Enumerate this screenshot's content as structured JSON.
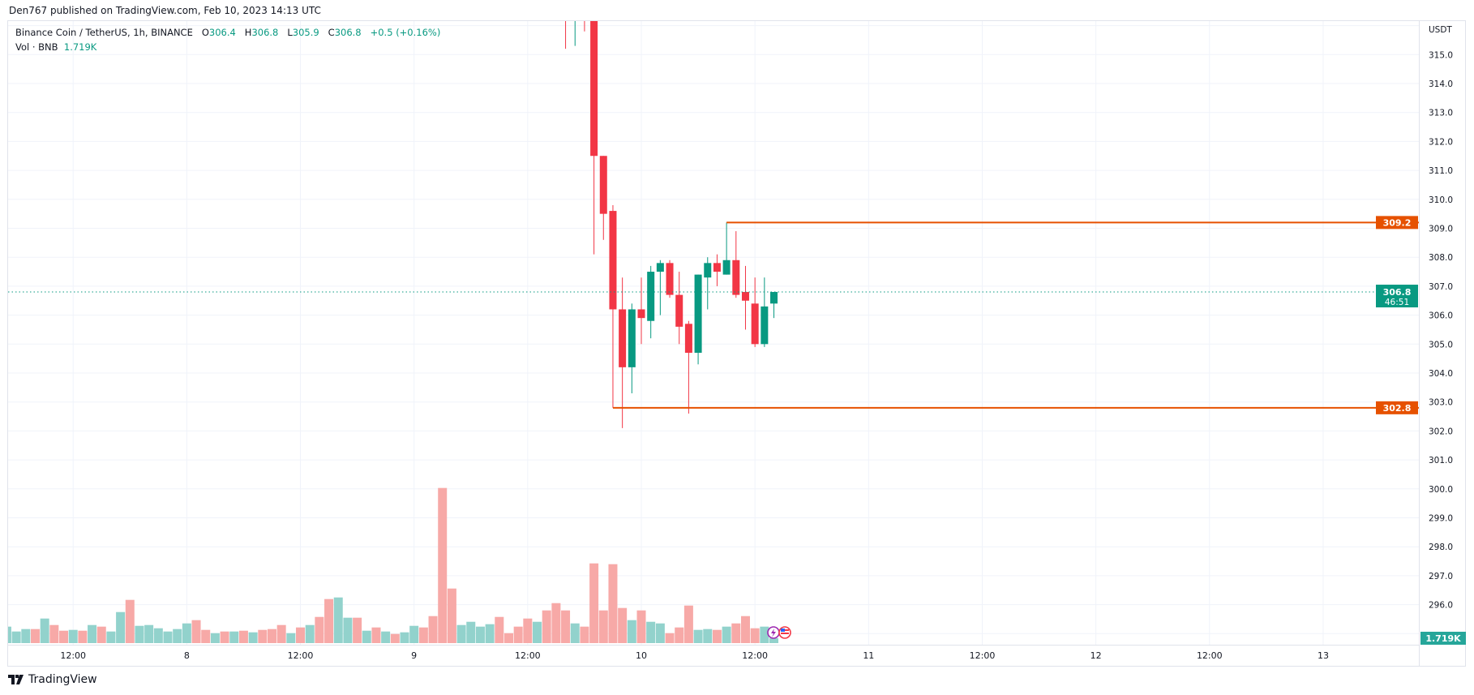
{
  "header": {
    "published": "Den767 published on TradingView.com, Feb 10, 2023 14:13 UTC"
  },
  "legend": {
    "symbol": "Binance Coin / TetherUS, 1h, BINANCE",
    "o_label": "O",
    "open": "306.4",
    "h_label": "H",
    "high": "306.8",
    "l_label": "L",
    "low": "305.9",
    "c_label": "C",
    "close": "306.8",
    "change": "+0.5 (+0.16%)",
    "vol_label": "Vol · BNB",
    "vol_value": "1.719K"
  },
  "footer": {
    "brand": "TradingView"
  },
  "colors": {
    "up": "#089981",
    "down": "#F23645",
    "up_vol": "#92D2CC",
    "down_vol": "#F7A9A7",
    "level_line": "#E65100",
    "grid": "#F0F3FA"
  },
  "chart_data": {
    "type": "candlestick",
    "currency_label": "USDT",
    "grid": true,
    "ylim": [
      294.3,
      316.5
    ],
    "y_ticks": [
      "315.0",
      "314.0",
      "313.0",
      "312.0",
      "311.0",
      "310.0",
      "309.0",
      "308.0",
      "307.0",
      "306.0",
      "305.0",
      "304.0",
      "303.0",
      "302.0",
      "301.0",
      "300.0",
      "299.0",
      "298.0",
      "297.0",
      "296.0"
    ],
    "x_ticks": [
      {
        "label": "12:00",
        "t": "2023-02-07 12:00"
      },
      {
        "label": "8",
        "t": "2023-02-08 00:00"
      },
      {
        "label": "12:00",
        "t": "2023-02-08 12:00"
      },
      {
        "label": "9",
        "t": "2023-02-09 00:00"
      },
      {
        "label": "12:00",
        "t": "2023-02-09 12:00"
      },
      {
        "label": "10",
        "t": "2023-02-10 00:00"
      },
      {
        "label": "12:00",
        "t": "2023-02-10 12:00"
      },
      {
        "label": "11",
        "t": "2023-02-11 00:00"
      },
      {
        "label": "12:00",
        "t": "2023-02-11 12:00"
      },
      {
        "label": "12",
        "t": "2023-02-12 00:00"
      },
      {
        "label": "12:00",
        "t": "2023-02-12 12:00"
      },
      {
        "label": "13",
        "t": "2023-02-13 00:00"
      }
    ],
    "candles": [
      {
        "t": "2023-02-09 16:00",
        "o": null,
        "h": null,
        "l": 315.2,
        "c": null,
        "dir": "down"
      },
      {
        "t": "2023-02-09 17:00",
        "o": null,
        "h": null,
        "l": 315.3,
        "c": null,
        "dir": "up"
      },
      {
        "t": "2023-02-09 18:00",
        "o": null,
        "h": null,
        "l": 315.8,
        "c": null,
        "dir": "down"
      },
      {
        "t": "2023-02-09 19:00",
        "o": null,
        "h": null,
        "l": 308.1,
        "c": 311.5,
        "dir": "down"
      },
      {
        "t": "2023-02-09 20:00",
        "o": 311.5,
        "h": 311.5,
        "l": 308.6,
        "c": 309.5
      },
      {
        "t": "2023-02-09 21:00",
        "o": 309.6,
        "h": 309.8,
        "l": 302.8,
        "c": 306.2
      },
      {
        "t": "2023-02-09 22:00",
        "o": 306.2,
        "h": 307.3,
        "l": 302.1,
        "c": 304.2
      },
      {
        "t": "2023-02-09 23:00",
        "o": 304.2,
        "h": 306.4,
        "l": 303.3,
        "c": 306.2
      },
      {
        "t": "2023-02-10 00:00",
        "o": 306.2,
        "h": 307.3,
        "l": 305.0,
        "c": 305.9
      },
      {
        "t": "2023-02-10 01:00",
        "o": 305.8,
        "h": 307.7,
        "l": 305.2,
        "c": 307.5
      },
      {
        "t": "2023-02-10 02:00",
        "o": 307.5,
        "h": 307.9,
        "l": 306.0,
        "c": 307.8
      },
      {
        "t": "2023-02-10 03:00",
        "o": 307.8,
        "h": 307.9,
        "l": 306.6,
        "c": 306.7
      },
      {
        "t": "2023-02-10 04:00",
        "o": 306.7,
        "h": 307.5,
        "l": 305.0,
        "c": 305.6
      },
      {
        "t": "2023-02-10 05:00",
        "o": 305.7,
        "h": 305.8,
        "l": 302.6,
        "c": 304.7
      },
      {
        "t": "2023-02-10 06:00",
        "o": 304.7,
        "h": 307.4,
        "l": 304.3,
        "c": 307.4
      },
      {
        "t": "2023-02-10 07:00",
        "o": 307.3,
        "h": 308.0,
        "l": 306.2,
        "c": 307.8
      },
      {
        "t": "2023-02-10 08:00",
        "o": 307.8,
        "h": 308.1,
        "l": 307.0,
        "c": 307.5
      },
      {
        "t": "2023-02-10 09:00",
        "o": 307.4,
        "h": 309.2,
        "l": 307.4,
        "c": 307.9
      },
      {
        "t": "2023-02-10 10:00",
        "o": 307.9,
        "h": 308.9,
        "l": 306.6,
        "c": 306.7
      },
      {
        "t": "2023-02-10 11:00",
        "o": 306.8,
        "h": 307.7,
        "l": 305.5,
        "c": 306.5
      },
      {
        "t": "2023-02-10 12:00",
        "o": 306.4,
        "h": 307.3,
        "l": 304.9,
        "c": 305.0
      },
      {
        "t": "2023-02-10 13:00",
        "o": 305.0,
        "h": 307.3,
        "l": 304.9,
        "c": 306.3
      },
      {
        "t": "2023-02-10 14:00",
        "o": 306.4,
        "h": 306.8,
        "l": 305.9,
        "c": 306.8
      }
    ],
    "volume_unit": "K",
    "volume": [
      {
        "t": "2023-02-07 05:00",
        "v": 5.82,
        "up": true
      },
      {
        "t": "2023-02-07 06:00",
        "v": 4.1,
        "up": true
      },
      {
        "t": "2023-02-07 07:00",
        "v": 4.96,
        "up": true
      },
      {
        "t": "2023-02-07 08:00",
        "v": 4.96,
        "up": false
      },
      {
        "t": "2023-02-07 09:00",
        "v": 8.68,
        "up": true
      },
      {
        "t": "2023-02-07 10:00",
        "v": 6.39,
        "up": false
      },
      {
        "t": "2023-02-07 11:00",
        "v": 4.38,
        "up": false
      },
      {
        "t": "2023-02-07 12:00",
        "v": 4.67,
        "up": true
      },
      {
        "t": "2023-02-07 13:00",
        "v": 4.38,
        "up": false
      },
      {
        "t": "2023-02-07 14:00",
        "v": 6.39,
        "up": true
      },
      {
        "t": "2023-02-07 15:00",
        "v": 5.82,
        "up": false
      },
      {
        "t": "2023-02-07 16:00",
        "v": 4.1,
        "up": true
      },
      {
        "t": "2023-02-07 17:00",
        "v": 10.97,
        "up": true
      },
      {
        "t": "2023-02-07 18:00",
        "v": 15.27,
        "up": false
      },
      {
        "t": "2023-02-07 19:00",
        "v": 6.1,
        "up": true
      },
      {
        "t": "2023-02-07 20:00",
        "v": 6.39,
        "up": true
      },
      {
        "t": "2023-02-07 21:00",
        "v": 5.24,
        "up": true
      },
      {
        "t": "2023-02-07 22:00",
        "v": 4.1,
        "up": true
      },
      {
        "t": "2023-02-07 23:00",
        "v": 4.96,
        "up": true
      },
      {
        "t": "2023-02-08 00:00",
        "v": 6.96,
        "up": true
      },
      {
        "t": "2023-02-08 01:00",
        "v": 8.11,
        "up": false
      },
      {
        "t": "2023-02-08 02:00",
        "v": 4.67,
        "up": false
      },
      {
        "t": "2023-02-08 03:00",
        "v": 3.52,
        "up": true
      },
      {
        "t": "2023-02-08 04:00",
        "v": 4.1,
        "up": false
      },
      {
        "t": "2023-02-08 05:00",
        "v": 4.1,
        "up": true
      },
      {
        "t": "2023-02-08 06:00",
        "v": 4.38,
        "up": false
      },
      {
        "t": "2023-02-08 07:00",
        "v": 3.81,
        "up": true
      },
      {
        "t": "2023-02-08 08:00",
        "v": 4.67,
        "up": false
      },
      {
        "t": "2023-02-08 09:00",
        "v": 4.96,
        "up": false
      },
      {
        "t": "2023-02-08 10:00",
        "v": 6.39,
        "up": false
      },
      {
        "t": "2023-02-08 11:00",
        "v": 3.52,
        "up": true
      },
      {
        "t": "2023-02-08 12:00",
        "v": 5.53,
        "up": false
      },
      {
        "t": "2023-02-08 13:00",
        "v": 6.39,
        "up": true
      },
      {
        "t": "2023-02-08 14:00",
        "v": 9.25,
        "up": false
      },
      {
        "t": "2023-02-08 15:00",
        "v": 15.56,
        "up": false
      },
      {
        "t": "2023-02-08 16:00",
        "v": 16.13,
        "up": true
      },
      {
        "t": "2023-02-08 17:00",
        "v": 8.97,
        "up": true
      },
      {
        "t": "2023-02-08 18:00",
        "v": 8.97,
        "up": false
      },
      {
        "t": "2023-02-08 19:00",
        "v": 4.38,
        "up": true
      },
      {
        "t": "2023-02-08 20:00",
        "v": 5.53,
        "up": false
      },
      {
        "t": "2023-02-08 21:00",
        "v": 4.1,
        "up": true
      },
      {
        "t": "2023-02-08 22:00",
        "v": 3.24,
        "up": false
      },
      {
        "t": "2023-02-08 23:00",
        "v": 3.81,
        "up": true
      },
      {
        "t": "2023-02-09 00:00",
        "v": 6.1,
        "up": true
      },
      {
        "t": "2023-02-09 01:00",
        "v": 5.53,
        "up": false
      },
      {
        "t": "2023-02-09 02:00",
        "v": 9.54,
        "up": false
      },
      {
        "t": "2023-02-09 03:00",
        "v": 54.81,
        "up": false
      },
      {
        "t": "2023-02-09 04:00",
        "v": 19.28,
        "up": false
      },
      {
        "t": "2023-02-09 05:00",
        "v": 6.39,
        "up": true
      },
      {
        "t": "2023-02-09 06:00",
        "v": 7.53,
        "up": true
      },
      {
        "t": "2023-02-09 07:00",
        "v": 5.82,
        "up": true
      },
      {
        "t": "2023-02-09 08:00",
        "v": 6.68,
        "up": true
      },
      {
        "t": "2023-02-09 09:00",
        "v": 9.25,
        "up": false
      },
      {
        "t": "2023-02-09 10:00",
        "v": 3.52,
        "up": false
      },
      {
        "t": "2023-02-09 11:00",
        "v": 5.82,
        "up": false
      },
      {
        "t": "2023-02-09 12:00",
        "v": 8.68,
        "up": false
      },
      {
        "t": "2023-02-09 13:00",
        "v": 7.53,
        "up": true
      },
      {
        "t": "2023-02-09 14:00",
        "v": 11.55,
        "up": false
      },
      {
        "t": "2023-02-09 15:00",
        "v": 14.12,
        "up": false
      },
      {
        "t": "2023-02-09 16:00",
        "v": 11.55,
        "up": false
      },
      {
        "t": "2023-02-09 17:00",
        "v": 6.96,
        "up": true
      },
      {
        "t": "2023-02-09 18:00",
        "v": 5.82,
        "up": false
      },
      {
        "t": "2023-02-09 19:00",
        "v": 28.16,
        "up": false
      },
      {
        "t": "2023-02-09 20:00",
        "v": 11.55,
        "up": false
      },
      {
        "t": "2023-02-09 21:00",
        "v": 27.88,
        "up": false
      },
      {
        "t": "2023-02-09 22:00",
        "v": 12.41,
        "up": false
      },
      {
        "t": "2023-02-09 23:00",
        "v": 8.11,
        "up": true
      },
      {
        "t": "2023-02-10 00:00",
        "v": 11.55,
        "up": false
      },
      {
        "t": "2023-02-10 01:00",
        "v": 7.53,
        "up": true
      },
      {
        "t": "2023-02-10 02:00",
        "v": 6.96,
        "up": true
      },
      {
        "t": "2023-02-10 03:00",
        "v": 3.52,
        "up": false
      },
      {
        "t": "2023-02-10 04:00",
        "v": 5.53,
        "up": false
      },
      {
        "t": "2023-02-10 05:00",
        "v": 13.26,
        "up": false
      },
      {
        "t": "2023-02-10 06:00",
        "v": 4.67,
        "up": true
      },
      {
        "t": "2023-02-10 07:00",
        "v": 4.96,
        "up": true
      },
      {
        "t": "2023-02-10 08:00",
        "v": 4.67,
        "up": false
      },
      {
        "t": "2023-02-10 09:00",
        "v": 5.82,
        "up": true
      },
      {
        "t": "2023-02-10 10:00",
        "v": 6.96,
        "up": false
      },
      {
        "t": "2023-02-10 11:00",
        "v": 9.54,
        "up": false
      },
      {
        "t": "2023-02-10 12:00",
        "v": 5.24,
        "up": false
      },
      {
        "t": "2023-02-10 13:00",
        "v": 5.82,
        "up": true
      },
      {
        "t": "2023-02-10 14:00",
        "v": 1.719,
        "up": true
      }
    ],
    "levels": [
      {
        "price": 309.2,
        "label": "309.2",
        "from": "2023-02-10 09:00"
      },
      {
        "price": 302.8,
        "label": "302.8",
        "from": "2023-02-09 21:00"
      }
    ],
    "last_price": {
      "price": 306.8,
      "label": "306.8",
      "countdown": "46:51"
    },
    "last_volume_label": "1.719K",
    "event_icons": [
      "lightning-event-icon",
      "us-flag-event-icon"
    ]
  }
}
